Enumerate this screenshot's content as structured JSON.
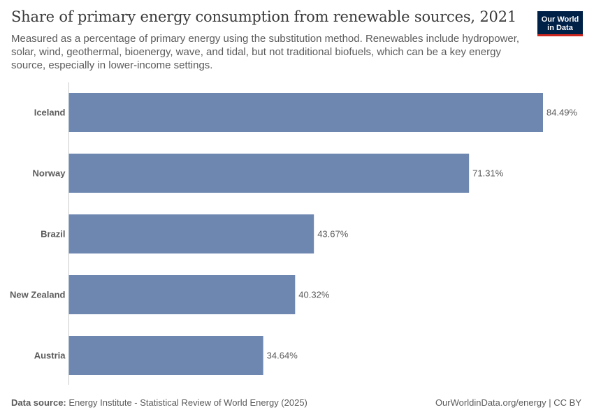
{
  "header": {
    "title": "Share of primary energy consumption from renewable sources, 2021",
    "subtitle": "Measured as a percentage of primary energy using the substitution method. Renewables include hydropower, solar, wind, geothermal, bioenergy, wave, and tidal, but not traditional biofuels, which can be a key energy source, especially in lower-income settings.",
    "logo_line1": "Our World",
    "logo_line2": "in Data"
  },
  "footer": {
    "source_label": "Data source:",
    "source_text": " Energy Institute - Statistical Review of World Energy (2025)",
    "right_text": "OurWorldinData.org/energy | CC BY"
  },
  "colors": {
    "bar": "#6d87b1",
    "axis": "#cccccc",
    "logo_bg": "#002147",
    "logo_accent": "#ce261e"
  },
  "chart_data": {
    "type": "bar",
    "orientation": "horizontal",
    "categories": [
      "Iceland",
      "Norway",
      "Brazil",
      "New Zealand",
      "Austria"
    ],
    "values": [
      84.49,
      71.31,
      43.67,
      40.32,
      34.64
    ],
    "value_labels": [
      "84.49%",
      "71.31%",
      "43.67%",
      "40.32%",
      "34.64%"
    ],
    "unit": "%",
    "xlim": [
      0,
      84.49
    ],
    "grid": false,
    "legend": "none"
  }
}
